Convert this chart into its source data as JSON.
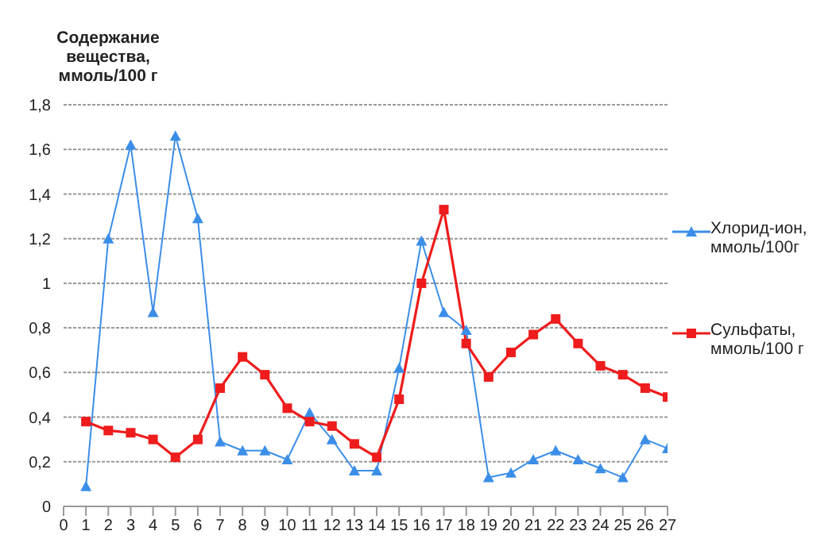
{
  "chart_data": {
    "type": "line",
    "ylabel": "Содержание вещества, ммоль/100 г",
    "x": [
      1,
      2,
      3,
      4,
      5,
      6,
      7,
      8,
      9,
      10,
      11,
      12,
      13,
      14,
      15,
      16,
      17,
      18,
      19,
      20,
      21,
      22,
      23,
      24,
      25,
      26,
      27
    ],
    "xlim": [
      0,
      27
    ],
    "xticks": [
      0,
      1,
      2,
      3,
      4,
      5,
      6,
      7,
      8,
      9,
      10,
      11,
      12,
      13,
      14,
      15,
      16,
      17,
      18,
      19,
      20,
      21,
      22,
      23,
      24,
      25,
      26,
      27
    ],
    "ylim": [
      0,
      1.8
    ],
    "yticks": [
      0,
      {
        "value": 0.2,
        "label": "0,2"
      },
      {
        "value": 0.4,
        "label": "0,4"
      },
      {
        "value": 0.6,
        "label": "0,6"
      },
      {
        "value": 0.8,
        "label": "0,8"
      },
      1,
      {
        "value": 1.2,
        "label": "1,2"
      },
      {
        "value": 1.4,
        "label": "1,4"
      },
      {
        "value": 1.6,
        "label": "1,6"
      },
      {
        "value": 1.8,
        "label": "1,8"
      }
    ],
    "grid": "y",
    "legend": "right",
    "series": [
      {
        "name": "Хлорид-ион, ммоль/100г",
        "color": "#3b8ee8",
        "marker": "triangle",
        "values": [
          0.09,
          1.2,
          1.62,
          0.87,
          1.66,
          1.29,
          0.29,
          0.25,
          0.25,
          0.21,
          0.42,
          0.3,
          0.16,
          0.16,
          0.62,
          1.19,
          0.87,
          0.79,
          0.13,
          0.15,
          0.21,
          0.25,
          0.21,
          0.17,
          0.13,
          0.3,
          0.26
        ]
      },
      {
        "name": "Сульфаты, ммоль/100 г",
        "color": "#ee1c1c",
        "marker": "square",
        "values": [
          0.38,
          0.34,
          0.33,
          0.3,
          0.22,
          0.3,
          0.53,
          0.67,
          0.59,
          0.44,
          0.38,
          0.36,
          0.28,
          0.22,
          0.48,
          1.0,
          1.33,
          0.73,
          0.58,
          0.69,
          0.77,
          0.84,
          0.73,
          0.63,
          0.59,
          0.53,
          0.49
        ]
      }
    ]
  }
}
